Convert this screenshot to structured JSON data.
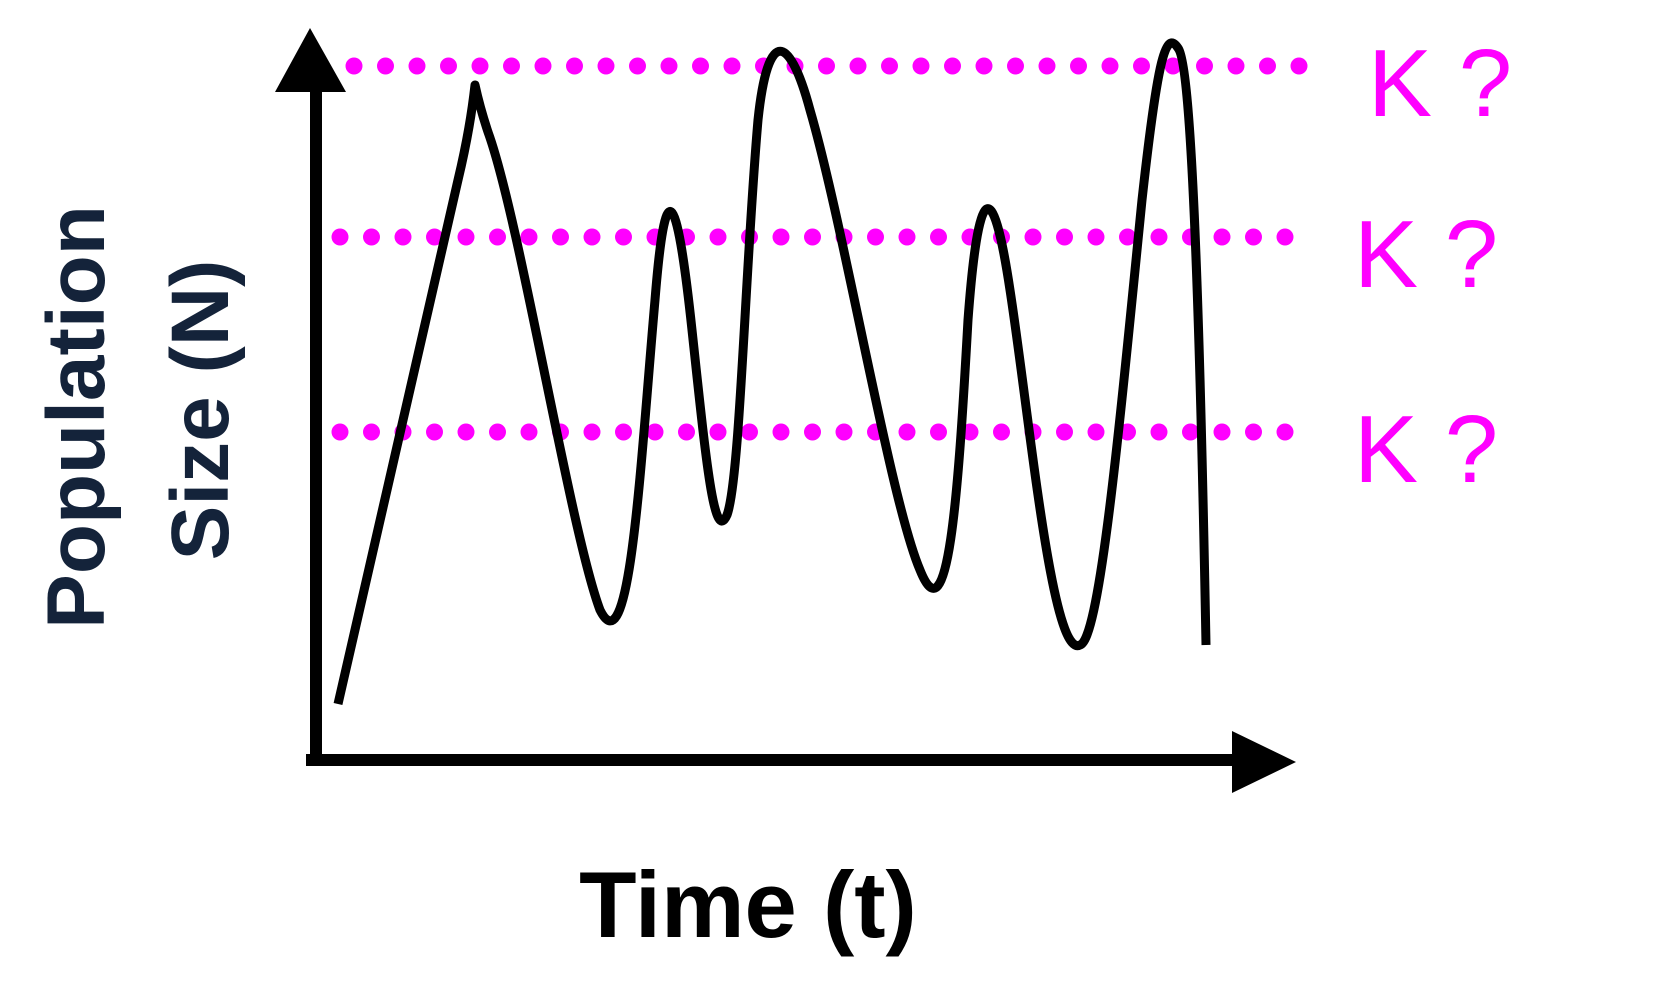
{
  "diagram": {
    "y_axis": {
      "line1": "Population",
      "line2": "Size (N)"
    },
    "x_axis": {
      "label": "Time (t)"
    },
    "k_lines": [
      {
        "label": "K ?"
      },
      {
        "label": "K ?"
      },
      {
        "label": "K ?"
      }
    ],
    "colors": {
      "axis": "#000000",
      "curve": "#000000",
      "k_line": "#ff00ff",
      "y_label": "#14233a"
    }
  }
}
